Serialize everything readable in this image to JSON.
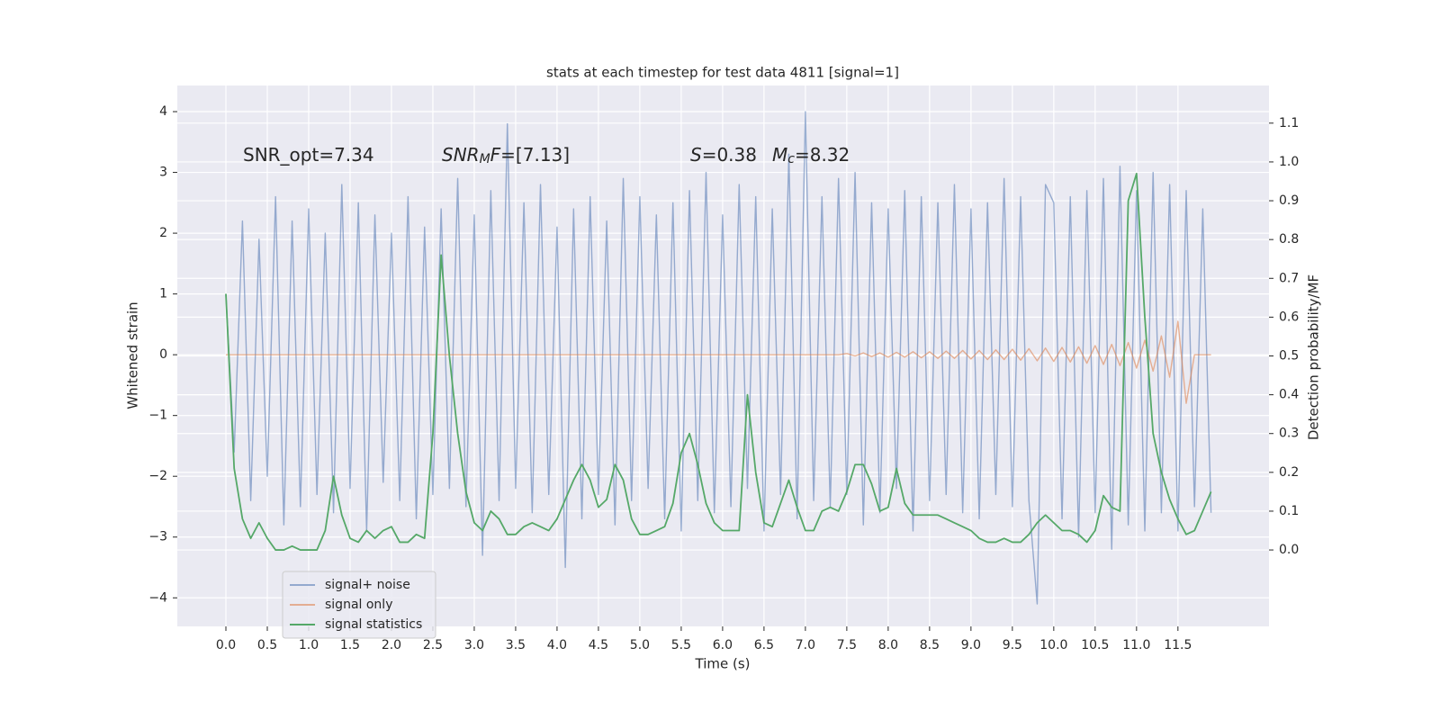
{
  "chart_data": {
    "type": "line",
    "title": "stats at each timestep for test data 4811 [signal=1]",
    "xlabel": "Time (s)",
    "ylabel": "Whitened strain",
    "y2label": "Detection probability/MF",
    "annotations": [
      [
        {
          "text": "SNR_opt=7.34"
        }
      ],
      [
        {
          "text": "SNR",
          "italic": true
        },
        {
          "text": "M",
          "italic": true,
          "sub": true
        },
        {
          "text": "F",
          "italic": true
        },
        {
          "text": "=[7.13]"
        }
      ],
      [
        {
          "text": "S",
          "italic": true
        },
        {
          "text": "=0.38"
        }
      ],
      [
        {
          "text": "M",
          "italic": true
        },
        {
          "text": "c",
          "italic": true,
          "sub": true
        },
        {
          "text": "=8.32"
        }
      ]
    ],
    "x": [
      0,
      0.1,
      0.2,
      0.3,
      0.4,
      0.5,
      0.6,
      0.7,
      0.8,
      0.9,
      1,
      1.1,
      1.2,
      1.3,
      1.4,
      1.5,
      1.6,
      1.7,
      1.8,
      1.9,
      2,
      2.1,
      2.2,
      2.3,
      2.4,
      2.5,
      2.6,
      2.7,
      2.8,
      2.9,
      3,
      3.1,
      3.2,
      3.3,
      3.4,
      3.5,
      3.6,
      3.7,
      3.8,
      3.9,
      4,
      4.1,
      4.2,
      4.3,
      4.4,
      4.5,
      4.6,
      4.7,
      4.8,
      4.9,
      5,
      5.1,
      5.2,
      5.3,
      5.4,
      5.5,
      5.6,
      5.7,
      5.8,
      5.9,
      6,
      6.1,
      6.2,
      6.3,
      6.4,
      6.5,
      6.6,
      6.7,
      6.8,
      6.9,
      7,
      7.1,
      7.2,
      7.3,
      7.4,
      7.5,
      7.6,
      7.7,
      7.8,
      7.9,
      8,
      8.1,
      8.2,
      8.3,
      8.4,
      8.5,
      8.6,
      8.7,
      8.8,
      8.9,
      9,
      9.1,
      9.2,
      9.3,
      9.4,
      9.5,
      9.6,
      9.7,
      9.8,
      9.9,
      10,
      10.1,
      10.2,
      10.3,
      10.4,
      10.5,
      10.6,
      10.7,
      10.8,
      10.9,
      11,
      11.1,
      11.2,
      11.3,
      11.4,
      11.5,
      11.6,
      11.7,
      11.8,
      11.9
    ],
    "series": [
      {
        "name": "signal+ noise",
        "color": "#4c72b0",
        "opacity": 0.55,
        "values": [
          1.0,
          -1.6,
          2.2,
          -2.4,
          1.9,
          -2.0,
          2.6,
          -2.8,
          2.2,
          -2.5,
          2.4,
          -2.3,
          2.0,
          -2.6,
          2.8,
          -2.2,
          2.5,
          -2.9,
          2.3,
          -2.1,
          2.0,
          -2.4,
          2.6,
          -2.7,
          2.1,
          -2.3,
          2.4,
          -2.2,
          2.9,
          -2.5,
          2.3,
          -3.3,
          2.7,
          -2.4,
          3.8,
          -2.2,
          2.5,
          -2.6,
          2.8,
          -2.3,
          2.1,
          -3.5,
          2.4,
          -2.7,
          2.6,
          -2.3,
          2.2,
          -2.8,
          2.9,
          -2.4,
          2.6,
          -2.2,
          2.3,
          -2.7,
          2.5,
          -2.9,
          2.7,
          -2.4,
          3.0,
          -2.6,
          2.3,
          -2.5,
          2.8,
          -2.2,
          2.6,
          -2.9,
          2.4,
          -2.3,
          3.3,
          -2.7,
          4.0,
          -2.4,
          2.6,
          -2.5,
          2.9,
          -2.3,
          3.0,
          -2.8,
          2.5,
          -2.6,
          2.4,
          -2.2,
          2.7,
          -2.9,
          2.6,
          -2.4,
          2.5,
          -2.3,
          2.8,
          -2.6,
          2.4,
          -2.7,
          2.5,
          -2.3,
          2.9,
          -2.5,
          2.6,
          -2.4,
          -4.1,
          2.8,
          2.5,
          -2.7,
          2.6,
          -3.0,
          2.7,
          -2.6,
          2.9,
          -3.2,
          3.1,
          -2.8,
          2.7,
          -2.9,
          3.0,
          -2.6,
          2.8,
          -2.9,
          2.7,
          -2.5,
          2.4,
          -2.6
        ]
      },
      {
        "name": "signal only",
        "color": "#dd8452",
        "opacity": 0.6,
        "values": [
          0,
          0,
          0,
          0,
          0,
          0,
          0,
          0,
          0,
          0,
          0,
          0,
          0,
          0,
          0,
          0,
          0,
          0,
          0,
          0,
          0,
          0,
          0,
          0,
          0,
          0,
          0,
          0,
          0,
          0,
          0,
          0,
          0,
          0,
          0,
          0,
          0,
          0,
          0,
          0,
          0,
          0,
          0,
          0,
          0,
          0,
          0,
          0,
          0,
          0,
          0,
          0,
          0,
          0,
          0,
          0,
          0,
          0,
          0,
          0,
          0,
          0,
          0,
          0,
          0,
          0,
          0,
          0,
          0,
          0,
          0,
          0,
          0,
          0,
          0,
          0.02,
          -0.02,
          0.03,
          -0.03,
          0.03,
          -0.04,
          0.04,
          -0.04,
          0.05,
          -0.05,
          0.05,
          -0.06,
          0.06,
          -0.06,
          0.07,
          -0.07,
          0.07,
          -0.08,
          0.08,
          -0.08,
          0.09,
          -0.09,
          0.1,
          -0.1,
          0.11,
          -0.11,
          0.12,
          -0.12,
          0.13,
          -0.14,
          0.15,
          -0.16,
          0.17,
          -0.18,
          0.2,
          -0.22,
          0.24,
          -0.27,
          0.31,
          -0.37,
          0.55,
          -0.8,
          0,
          0,
          0
        ]
      },
      {
        "name": "signal statistics",
        "color": "#55a868",
        "opacity": 1,
        "axis": "y2",
        "values": [
          0.66,
          0.21,
          0.08,
          0.03,
          0.07,
          0.03,
          0.0,
          0.0,
          0.01,
          0.0,
          0.0,
          0.0,
          0.05,
          0.19,
          0.09,
          0.03,
          0.02,
          0.05,
          0.03,
          0.05,
          0.06,
          0.02,
          0.02,
          0.04,
          0.03,
          0.3,
          0.76,
          0.5,
          0.3,
          0.15,
          0.07,
          0.05,
          0.1,
          0.08,
          0.04,
          0.04,
          0.06,
          0.07,
          0.06,
          0.05,
          0.08,
          0.13,
          0.18,
          0.22,
          0.18,
          0.11,
          0.13,
          0.22,
          0.18,
          0.08,
          0.04,
          0.04,
          0.05,
          0.06,
          0.12,
          0.25,
          0.3,
          0.22,
          0.12,
          0.07,
          0.05,
          0.05,
          0.05,
          0.4,
          0.2,
          0.07,
          0.06,
          0.12,
          0.18,
          0.11,
          0.05,
          0.05,
          0.1,
          0.11,
          0.1,
          0.15,
          0.22,
          0.22,
          0.17,
          0.1,
          0.11,
          0.21,
          0.12,
          0.09,
          0.09,
          0.09,
          0.09,
          0.08,
          0.07,
          0.06,
          0.05,
          0.03,
          0.02,
          0.02,
          0.03,
          0.02,
          0.02,
          0.04,
          0.07,
          0.09,
          0.07,
          0.05,
          0.05,
          0.04,
          0.02,
          0.05,
          0.14,
          0.11,
          0.1,
          0.9,
          0.97,
          0.6,
          0.3,
          0.2,
          0.13,
          0.08,
          0.04,
          0.05,
          0.1,
          0.15
        ]
      }
    ],
    "xlim": [
      -0.587,
      12.6
    ],
    "xticks": [
      {
        "value": 0,
        "label": "0.0"
      },
      {
        "value": 0.5,
        "label": "0.5"
      },
      {
        "value": 1,
        "label": "1.0"
      },
      {
        "value": 1.5,
        "label": "1.5"
      },
      {
        "value": 2,
        "label": "2.0"
      },
      {
        "value": 2.5,
        "label": "2.5"
      },
      {
        "value": 3,
        "label": "3.0"
      },
      {
        "value": 3.5,
        "label": "3.5"
      },
      {
        "value": 4,
        "label": "4.0"
      },
      {
        "value": 4.5,
        "label": "4.5"
      },
      {
        "value": 5,
        "label": "5.0"
      },
      {
        "value": 5.5,
        "label": "5.5"
      },
      {
        "value": 6,
        "label": "6.0"
      },
      {
        "value": 6.5,
        "label": "6.5"
      },
      {
        "value": 7,
        "label": "7.0"
      },
      {
        "value": 7.5,
        "label": "7.5"
      },
      {
        "value": 8,
        "label": "8.0"
      },
      {
        "value": 8.5,
        "label": "8.5"
      },
      {
        "value": 9,
        "label": "9.0"
      },
      {
        "value": 9.5,
        "label": "9.5"
      },
      {
        "value": 10,
        "label": "10.0"
      },
      {
        "value": 10.5,
        "label": "10.5"
      },
      {
        "value": 11,
        "label": "11.0"
      },
      {
        "value": 11.5,
        "label": "11.5"
      }
    ],
    "ylim": [
      -4.47,
      4.43
    ],
    "yticks": [
      {
        "value": -4,
        "label": "−4"
      },
      {
        "value": -3,
        "label": "−3"
      },
      {
        "value": -2,
        "label": "−2"
      },
      {
        "value": -1,
        "label": "−1"
      },
      0,
      1,
      2,
      3,
      4
    ],
    "y2lim": [
      -0.197,
      1.197
    ],
    "y2ticks": [
      {
        "value": 0,
        "label": "0.0"
      },
      0.1,
      0.2,
      0.3,
      0.4,
      0.5,
      0.6,
      0.7,
      0.8,
      0.9,
      {
        "value": 1,
        "label": "1.0"
      },
      1.1
    ],
    "grid": true,
    "legend": "lower left",
    "background": "#eaeaf2"
  }
}
